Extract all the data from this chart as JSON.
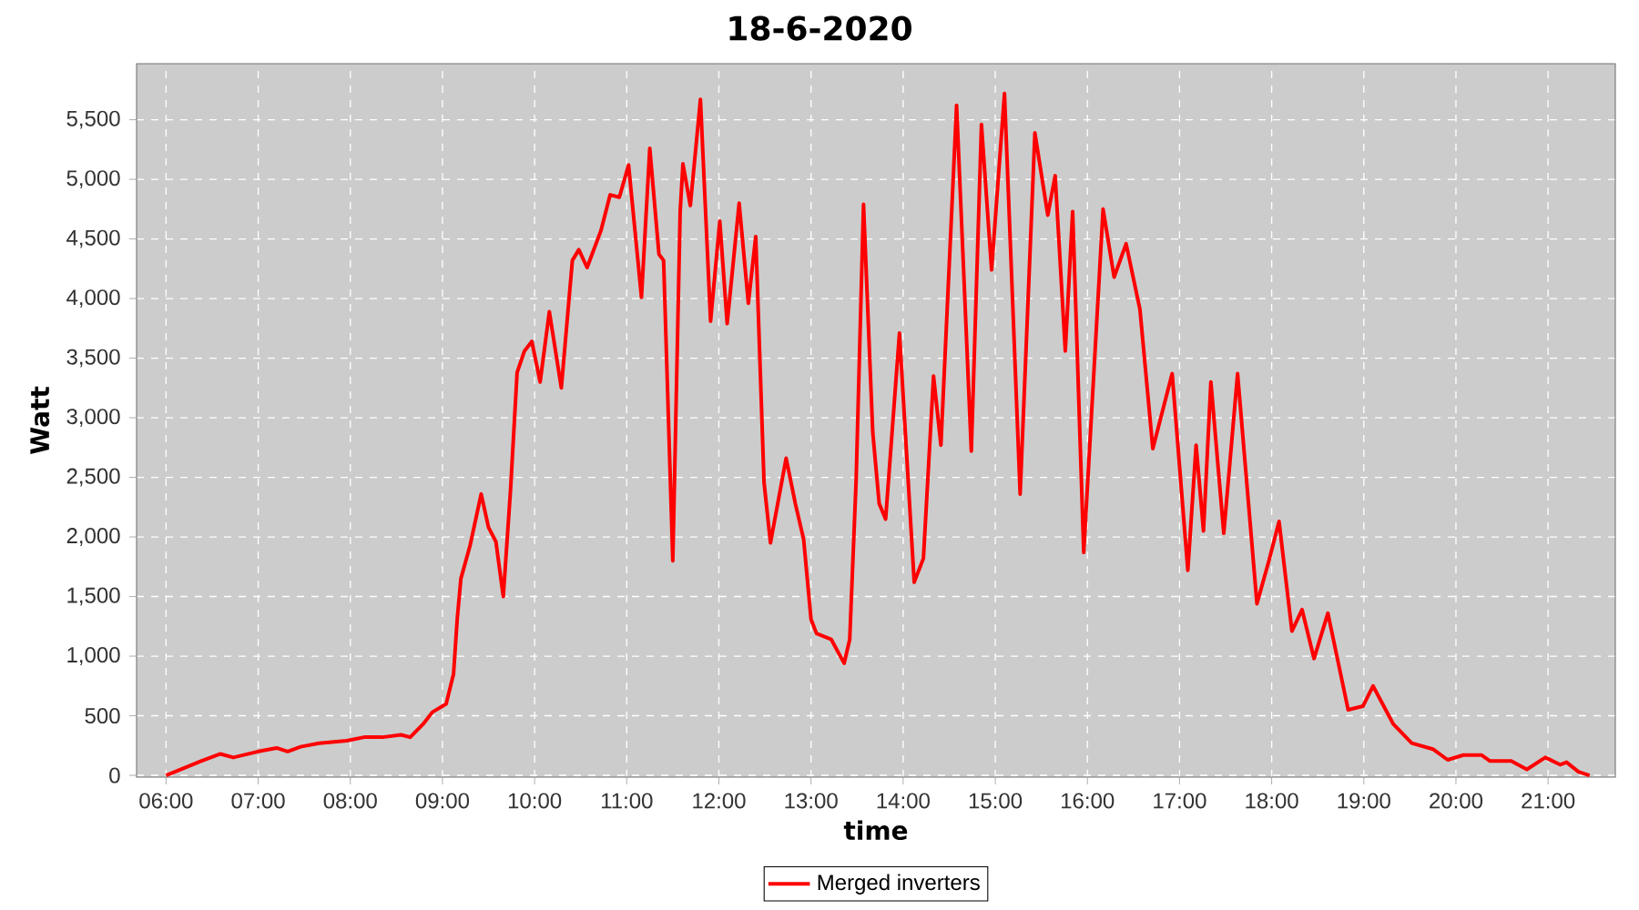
{
  "chart_data": {
    "type": "line",
    "title": "18-6-2020",
    "xlabel": "time",
    "ylabel": "Watt",
    "xlim": [
      5.68,
      21.73
    ],
    "ylim": [
      -15,
      5970
    ],
    "xticks": [
      {
        "value": 6,
        "label": "06:00"
      },
      {
        "value": 7,
        "label": "07:00"
      },
      {
        "value": 8,
        "label": "08:00"
      },
      {
        "value": 9,
        "label": "09:00"
      },
      {
        "value": 10,
        "label": "10:00"
      },
      {
        "value": 11,
        "label": "11:00"
      },
      {
        "value": 12,
        "label": "12:00"
      },
      {
        "value": 13,
        "label": "13:00"
      },
      {
        "value": 14,
        "label": "14:00"
      },
      {
        "value": 15,
        "label": "15:00"
      },
      {
        "value": 16,
        "label": "16:00"
      },
      {
        "value": 17,
        "label": "17:00"
      },
      {
        "value": 18,
        "label": "18:00"
      },
      {
        "value": 19,
        "label": "19:00"
      },
      {
        "value": 20,
        "label": "20:00"
      },
      {
        "value": 21,
        "label": "21:00"
      }
    ],
    "yticks": [
      0,
      500,
      {
        "value": 1000,
        "label": "1,000"
      },
      {
        "value": 1500,
        "label": "1,500"
      },
      {
        "value": 2000,
        "label": "2,000"
      },
      {
        "value": 2500,
        "label": "2,500"
      },
      {
        "value": 3000,
        "label": "3,000"
      },
      {
        "value": 3500,
        "label": "3,500"
      },
      {
        "value": 4000,
        "label": "4,000"
      },
      {
        "value": 4500,
        "label": "4,500"
      },
      {
        "value": 5000,
        "label": "5,000"
      },
      {
        "value": 5500,
        "label": "5,500"
      }
    ],
    "grid": true,
    "legend": "bottom",
    "marker": "none",
    "line_style": "solid",
    "series": [
      {
        "name": "Merged inverters",
        "color": "#ff0000",
        "x": [
          6.0,
          6.38,
          6.59,
          6.73,
          7.0,
          7.2,
          7.32,
          7.46,
          7.66,
          7.96,
          8.15,
          8.35,
          8.55,
          8.65,
          8.79,
          8.89,
          9.04,
          9.12,
          9.16,
          9.2,
          9.3,
          9.42,
          9.5,
          9.58,
          9.66,
          9.74,
          9.81,
          9.89,
          9.97,
          10.06,
          10.16,
          10.29,
          10.41,
          10.48,
          10.57,
          10.72,
          10.82,
          10.92,
          11.02,
          11.16,
          11.25,
          11.35,
          11.4,
          11.5,
          11.58,
          11.61,
          11.69,
          11.8,
          11.91,
          12.01,
          12.09,
          12.22,
          12.32,
          12.4,
          12.49,
          12.56,
          12.73,
          12.83,
          12.92,
          13.0,
          13.06,
          13.22,
          13.36,
          13.42,
          13.49,
          13.57,
          13.67,
          13.74,
          13.81,
          13.96,
          14.12,
          14.22,
          14.33,
          14.41,
          14.58,
          14.74,
          14.85,
          14.96,
          15.1,
          15.27,
          15.43,
          15.57,
          15.65,
          15.76,
          15.84,
          15.96,
          16.17,
          16.29,
          16.42,
          16.57,
          16.71,
          16.92,
          17.09,
          17.18,
          17.26,
          17.34,
          17.48,
          17.63,
          17.84,
          17.97,
          18.08,
          18.22,
          18.33,
          18.46,
          18.61,
          18.83,
          18.99,
          19.1,
          19.32,
          19.52,
          19.75,
          19.91,
          20.08,
          20.28,
          20.37,
          20.6,
          20.77,
          20.97,
          21.13,
          21.2,
          21.33,
          21.45
        ],
        "values": [
          0,
          120,
          180,
          150,
          200,
          230,
          200,
          240,
          270,
          290,
          320,
          320,
          340,
          320,
          430,
          530,
          600,
          850,
          1310,
          1650,
          1930,
          2360,
          2080,
          1960,
          1500,
          2410,
          3380,
          3560,
          3640,
          3300,
          3890,
          3250,
          4320,
          4410,
          4260,
          4570,
          4870,
          4850,
          5120,
          4010,
          5260,
          4370,
          4320,
          1800,
          4730,
          5130,
          4780,
          5670,
          3810,
          4650,
          3790,
          4800,
          3960,
          4520,
          2460,
          1950,
          2660,
          2280,
          1980,
          1310,
          1190,
          1140,
          940,
          1140,
          2480,
          4790,
          2880,
          2280,
          2150,
          3710,
          1620,
          1820,
          3350,
          2770,
          5620,
          2720,
          5460,
          4240,
          5720,
          2360,
          5390,
          4700,
          5030,
          3560,
          4730,
          1870,
          4750,
          4180,
          4460,
          3910,
          2740,
          3370,
          1720,
          2770,
          2050,
          3300,
          2030,
          3370,
          1440,
          1800,
          2130,
          1210,
          1390,
          980,
          1360,
          550,
          580,
          750,
          430,
          270,
          220,
          130,
          170,
          170,
          120,
          120,
          50,
          150,
          90,
          110,
          30,
          0
        ]
      }
    ]
  }
}
